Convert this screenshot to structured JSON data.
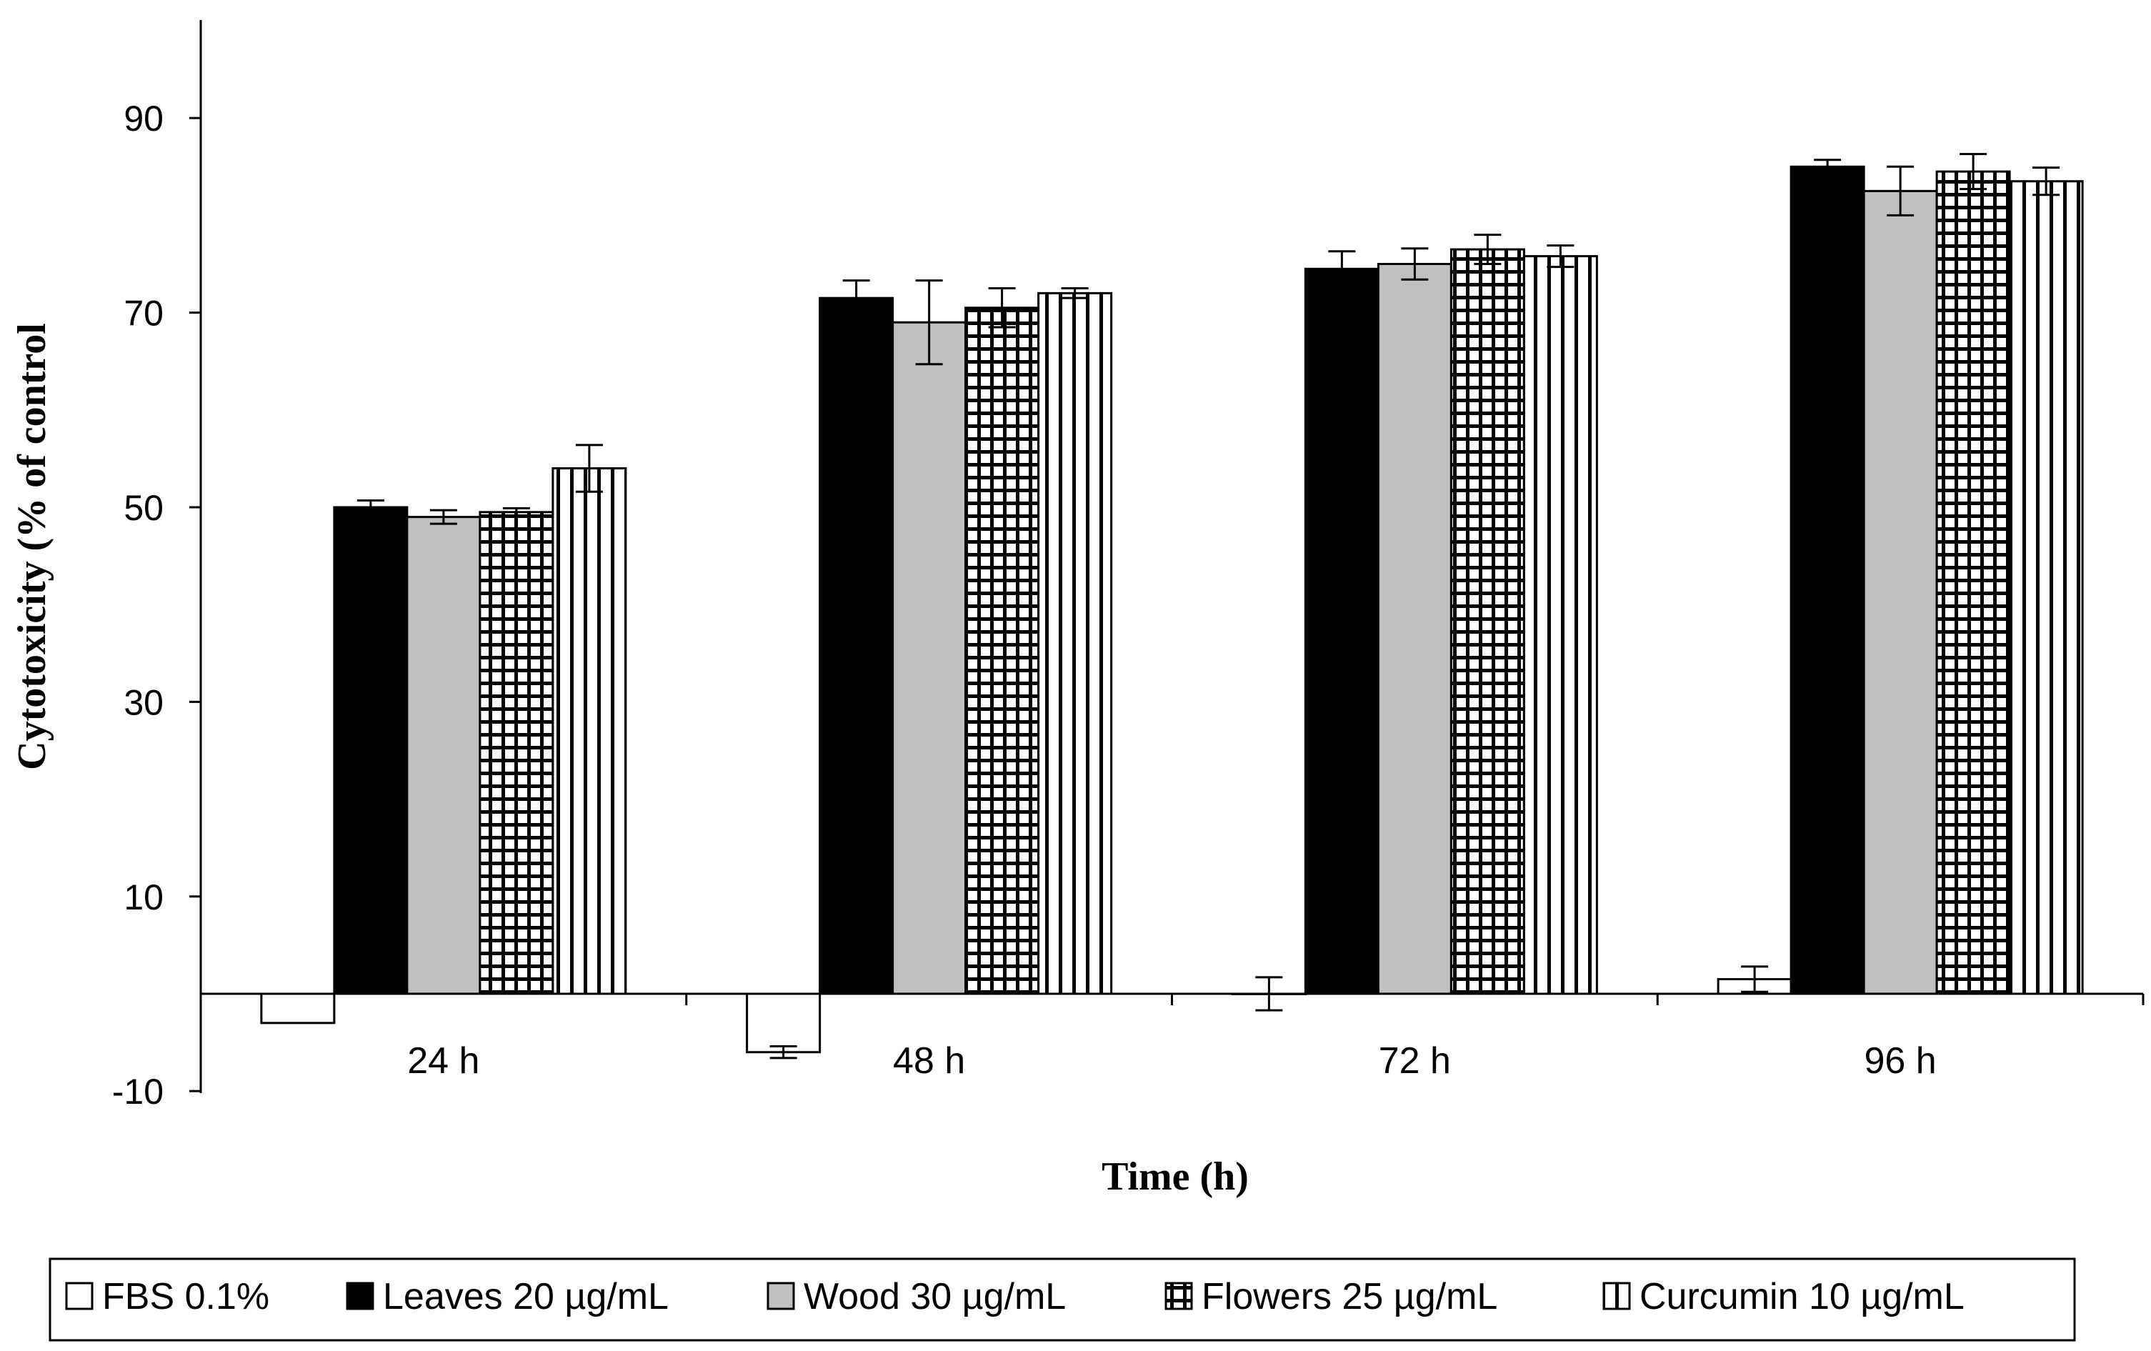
{
  "chart_data": {
    "type": "bar",
    "title": "",
    "xlabel": "Time (h)",
    "ylabel": "Cytotoxicity (% of control",
    "ylim": [
      -10,
      100
    ],
    "yticks": [
      {
        "value": 90,
        "label": "90"
      },
      {
        "value": 70,
        "label": "70"
      },
      {
        "value": 50,
        "label": "50"
      },
      {
        "value": 30,
        "label": "30"
      },
      {
        "value": 10,
        "label": "10"
      },
      {
        "value": -10,
        "label": "-10"
      }
    ],
    "categories": [
      "24 h",
      "48 h",
      "72 h",
      "96 h"
    ],
    "series": [
      {
        "name": "FBS 0.1%",
        "pattern": "white",
        "values": [
          -3,
          -6,
          0,
          1.5
        ],
        "errors": [
          null,
          0.6,
          1.7,
          1.3
        ]
      },
      {
        "name": "Leaves 20 µg/mL",
        "pattern": "black",
        "values": [
          50,
          71.5,
          74.5,
          85
        ],
        "errors": [
          0.7,
          1.8,
          1.8,
          0.7
        ]
      },
      {
        "name": "Wood 30 µg/mL",
        "pattern": "gray",
        "values": [
          49,
          69,
          75,
          82.5
        ],
        "errors": [
          0.7,
          4.3,
          1.6,
          2.5
        ]
      },
      {
        "name": "Flowers 25 µg/mL",
        "pattern": "grid",
        "values": [
          49.5,
          70.5,
          76.5,
          84.5
        ],
        "errors": [
          0.4,
          2.0,
          1.5,
          1.8
        ]
      },
      {
        "name": "Curcumin 10 µg/mL",
        "pattern": "vlines",
        "values": [
          54,
          72,
          75.8,
          83.5
        ],
        "errors": [
          2.4,
          0.5,
          1.1,
          1.4
        ]
      }
    ],
    "colors": {
      "black": "#000000",
      "gray": "#c0c0c0",
      "white": "#ffffff"
    }
  }
}
